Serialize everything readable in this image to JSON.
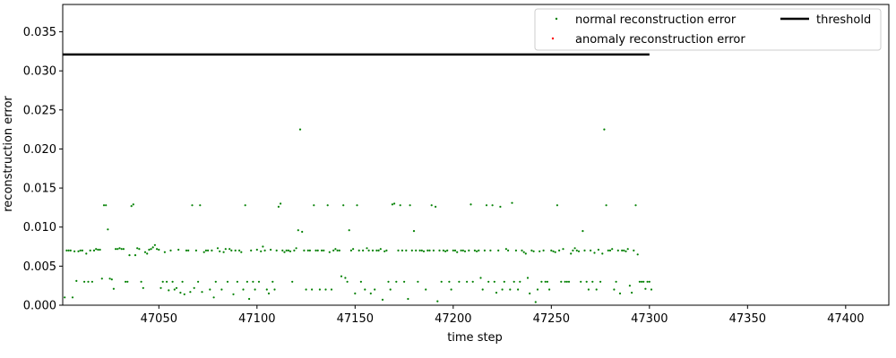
{
  "chart_data": {
    "type": "scatter",
    "xlabel": "time step",
    "ylabel": "reconstruction error",
    "xlim": [
      47001,
      47422
    ],
    "ylim": [
      0,
      0.0385
    ],
    "xticks": [
      47050,
      47100,
      47150,
      47200,
      47250,
      47300,
      47350,
      47400
    ],
    "yticks": [
      0.0,
      0.005,
      0.01,
      0.015,
      0.02,
      0.025,
      0.03,
      0.035
    ],
    "ytick_labels": [
      "0.000",
      "0.005",
      "0.010",
      "0.015",
      "0.020",
      "0.025",
      "0.030",
      "0.035"
    ],
    "legend": {
      "placement": "top-right",
      "entries": [
        {
          "label": "normal reconstruction error",
          "color": "#008000",
          "marker": "dot"
        },
        {
          "label": "anomaly reconstruction error",
          "color": "#ff0000",
          "marker": "dot"
        },
        {
          "label": "threshold",
          "color": "#000000",
          "marker": "line"
        }
      ]
    },
    "threshold": {
      "value": 0.0321,
      "x_start": 47001,
      "x_end": 47300
    },
    "series": [
      {
        "name": "normal reconstruction error",
        "color": "#008000",
        "x_start": 47002,
        "x_end": 47301,
        "values": [
          0.001,
          0.007,
          0.007,
          0.007,
          0.001,
          0.0069,
          0.0031,
          0.0069,
          0.007,
          0.007,
          0.003,
          0.0066,
          0.003,
          0.007,
          0.003,
          0.007,
          0.0072,
          0.0071,
          0.0071,
          0.0034,
          0.0128,
          0.0128,
          0.0097,
          0.0034,
          0.0033,
          0.0021,
          0.0072,
          0.0072,
          0.0073,
          0.0072,
          0.0072,
          0.003,
          0.003,
          0.0064,
          0.0127,
          0.0129,
          0.0064,
          0.0073,
          0.0072,
          0.003,
          0.0022,
          0.0068,
          0.0066,
          0.0071,
          0.0072,
          0.0074,
          0.0077,
          0.0072,
          0.0071,
          0.0022,
          0.003,
          0.0068,
          0.003,
          0.0019,
          0.007,
          0.003,
          0.002,
          0.0022,
          0.0071,
          0.0016,
          0.003,
          0.0014,
          0.007,
          0.007,
          0.0017,
          0.0128,
          0.0022,
          0.007,
          0.003,
          0.0128,
          0.0017,
          0.0068,
          0.007,
          0.007,
          0.002,
          0.007,
          0.001,
          0.003,
          0.0073,
          0.0069,
          0.002,
          0.0068,
          0.0072,
          0.003,
          0.0072,
          0.007,
          0.0014,
          0.007,
          0.003,
          0.007,
          0.0068,
          0.002,
          0.0128,
          0.003,
          0.0008,
          0.007,
          0.003,
          0.002,
          0.0071,
          0.003,
          0.0069,
          0.0075,
          0.007,
          0.002,
          0.0015,
          0.0071,
          0.003,
          0.002,
          0.007,
          0.0126,
          0.013,
          0.007,
          0.0068,
          0.007,
          0.007,
          0.0069,
          0.003,
          0.007,
          0.0073,
          0.0096,
          0.0225,
          0.0094,
          0.007,
          0.002,
          0.007,
          0.007,
          0.002,
          0.0128,
          0.007,
          0.007,
          0.002,
          0.007,
          0.007,
          0.002,
          0.0128,
          0.0068,
          0.002,
          0.007,
          0.0072,
          0.007,
          0.007,
          0.0037,
          0.0128,
          0.0035,
          0.003,
          0.0096,
          0.007,
          0.0072,
          0.0015,
          0.0128,
          0.007,
          0.003,
          0.007,
          0.002,
          0.0073,
          0.007,
          0.0015,
          0.007,
          0.002,
          0.007,
          0.007,
          0.0072,
          0.0007,
          0.0069,
          0.007,
          0.003,
          0.002,
          0.0129,
          0.013,
          0.003,
          0.007,
          0.0128,
          0.007,
          0.003,
          0.007,
          0.0008,
          0.0128,
          0.007,
          0.0095,
          0.007,
          0.003,
          0.007,
          0.007,
          0.0069,
          0.002,
          0.007,
          0.007,
          0.0128,
          0.007,
          0.0126,
          0.0005,
          0.007,
          0.003,
          0.007,
          0.0069,
          0.007,
          0.003,
          0.002,
          0.007,
          0.007,
          0.0068,
          0.003,
          0.007,
          0.007,
          0.0069,
          0.003,
          0.007,
          0.0129,
          0.003,
          0.007,
          0.0069,
          0.007,
          0.0035,
          0.002,
          0.007,
          0.0128,
          0.003,
          0.007,
          0.0128,
          0.003,
          0.0016,
          0.007,
          0.0126,
          0.002,
          0.003,
          0.0072,
          0.007,
          0.002,
          0.0131,
          0.003,
          0.007,
          0.002,
          0.003,
          0.007,
          0.0068,
          0.0066,
          0.0035,
          0.0015,
          0.007,
          0.0069,
          0.0004,
          0.002,
          0.0069,
          0.003,
          0.007,
          0.003,
          0.003,
          0.002,
          0.007,
          0.0069,
          0.0068,
          0.0128,
          0.007,
          0.003,
          0.0072,
          0.003,
          0.003,
          0.003,
          0.0066,
          0.007,
          0.0073,
          0.007,
          0.0069,
          0.003,
          0.0095,
          0.007,
          0.003,
          0.002,
          0.007,
          0.003,
          0.0067,
          0.002,
          0.0071,
          0.003,
          0.0066,
          0.0225,
          0.0128,
          0.007,
          0.007,
          0.0072,
          0.002,
          0.003,
          0.007,
          0.0015,
          0.007,
          0.007,
          0.0069,
          0.0072,
          0.0025,
          0.0016,
          0.007,
          0.0128,
          0.0065,
          0.003,
          0.003,
          0.003,
          0.0021,
          0.003,
          0.003,
          0.002
        ]
      },
      {
        "name": "anomaly reconstruction error",
        "color": "#ff0000",
        "values": []
      }
    ]
  }
}
